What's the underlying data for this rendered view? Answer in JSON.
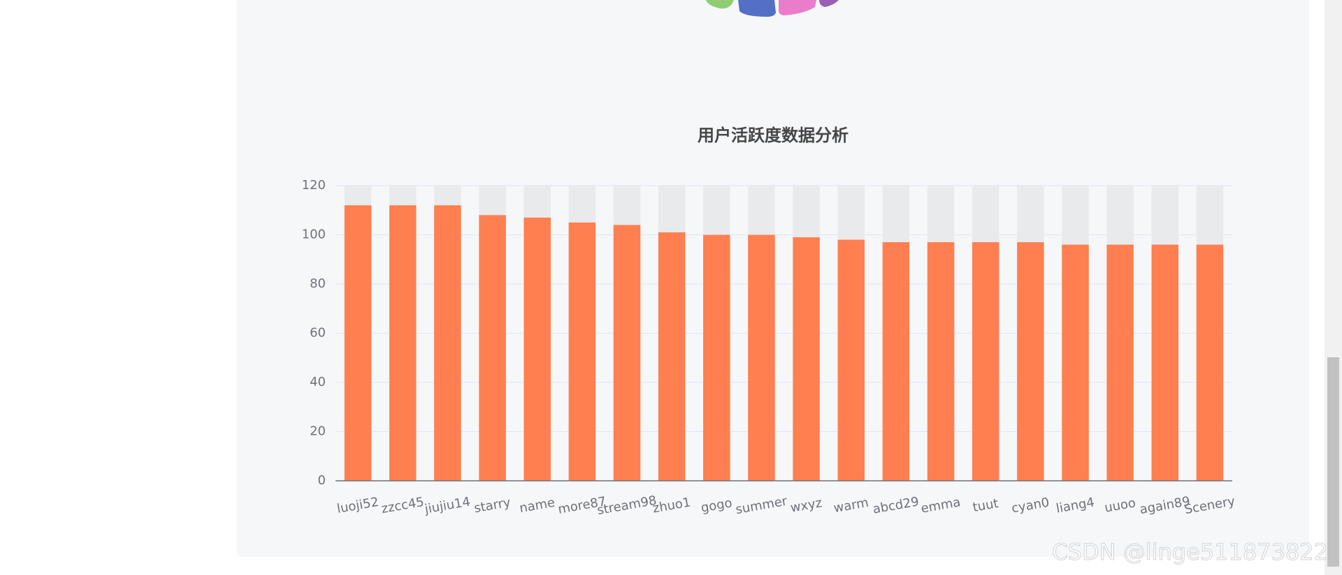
{
  "chart_data": {
    "type": "bar",
    "title": "用户活跃度数据分析",
    "categories": [
      "luoji52",
      "zzcc45",
      "jiujiu14",
      "starry",
      "name",
      "more87",
      "stream98",
      "zhuo1",
      "gogo",
      "summer",
      "wxyz",
      "warm",
      "abcd29",
      "emma",
      "tuut",
      "cyan0",
      "liang4",
      "uuoo",
      "again89",
      "Scenery"
    ],
    "values": [
      112,
      112,
      112,
      108,
      107,
      105,
      104,
      101,
      100,
      100,
      99,
      98,
      97,
      97,
      97,
      97,
      96,
      96,
      96,
      96
    ],
    "color": "#ff7f50",
    "show_background": true,
    "background_color": "#e9eaeb",
    "ylim": [
      0,
      120
    ],
    "yticks": [
      0,
      20,
      40,
      60,
      80,
      100,
      120
    ],
    "grid": true
  },
  "watermark": "CSDN @linge511873822"
}
